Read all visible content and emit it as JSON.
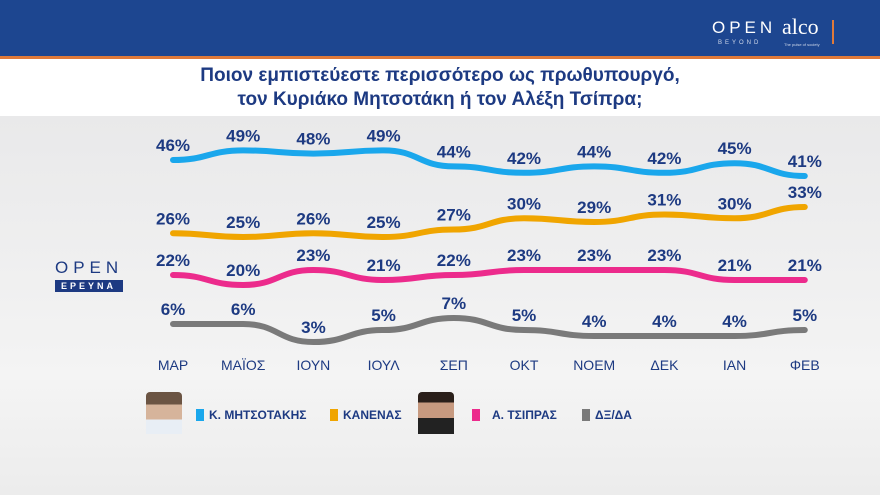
{
  "header": {
    "brand1": "OPEN",
    "brand1_sub": "BEYOND",
    "brand2": "alco",
    "brand2_sub": "The pulse of society"
  },
  "side_logo": {
    "top": "OPEN",
    "bottom": "ΕΡΕΥΝΑ"
  },
  "chart_data": {
    "type": "line",
    "title": "Ποιον εμπιστεύεστε περισσότερο ως πρωθυπουργό, τον Κυριάκο Μητσοτάκη ή τον Αλέξη Τσίπρα;",
    "title_lines": [
      "Ποιον εμπιστεύεστε περισσότερο ως πρωθυπουργό,",
      "τον Κυριάκο Μητσοτάκη ή τον Αλέξη Τσίπρα;"
    ],
    "categories": [
      "ΜΑΡ",
      "ΜΑΪΟΣ",
      "ΙΟΥΝ",
      "ΙΟΥΛ",
      "ΣΕΠ",
      "ΟΚΤ",
      "ΝΟΕΜ",
      "ΔΕΚ",
      "ΙΑΝ",
      "ΦΕΒ"
    ],
    "unit": "%",
    "series": [
      {
        "name": "Κ. ΜΗΤΣΟΤΑΚΗΣ",
        "color": "#1aa7ec",
        "values": [
          46,
          49,
          48,
          49,
          44,
          42,
          44,
          42,
          45,
          41
        ]
      },
      {
        "name": "ΚΑΝΕΝΑΣ",
        "color": "#f0a500",
        "values": [
          26,
          25,
          26,
          25,
          27,
          30,
          29,
          31,
          30,
          33
        ]
      },
      {
        "name": "Α. ΤΣΙΠΡΑΣ",
        "color": "#ec2b8c",
        "values": [
          22,
          20,
          23,
          21,
          22,
          23,
          23,
          23,
          21,
          21
        ]
      },
      {
        "name": "ΔΞ/ΔΑ",
        "color": "#7a7a7a",
        "values": [
          6,
          6,
          3,
          5,
          7,
          5,
          4,
          4,
          4,
          5
        ]
      }
    ],
    "legend_placement": "bottom"
  }
}
